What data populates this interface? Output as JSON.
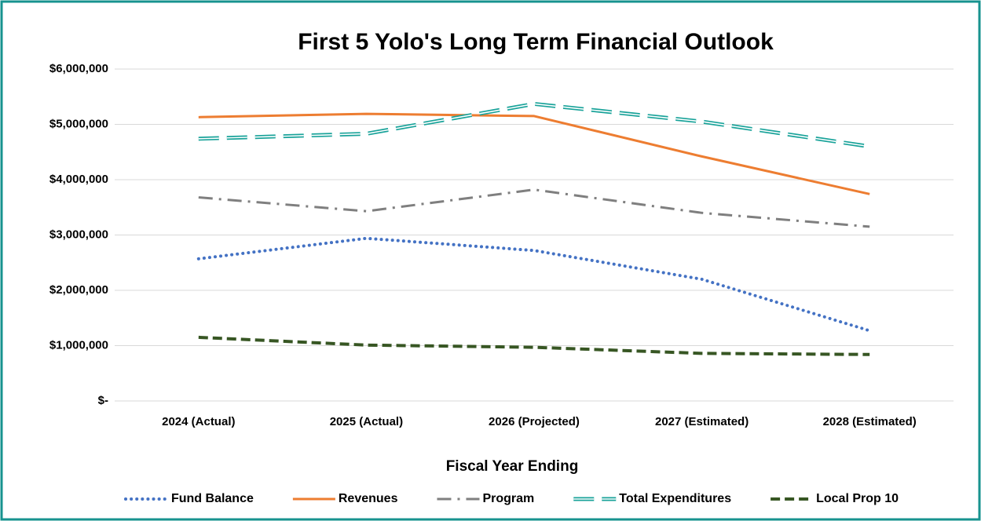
{
  "chart_data": {
    "type": "line",
    "title": "First 5 Yolo's Long Term Financial Outlook",
    "x_label": "Fiscal Year Ending",
    "categories": [
      "2024 (Actual)",
      "2025 (Actual)",
      "2026 (Projected)",
      "2027 (Estimated)",
      "2028 (Estimated)"
    ],
    "series": [
      {
        "name": "Fund Balance",
        "color": "#4472c4",
        "style": "dotted",
        "values": [
          2570000,
          2940000,
          2720000,
          2200000,
          1270000
        ]
      },
      {
        "name": "Revenues",
        "color": "#ed7d31",
        "style": "solid",
        "values": [
          5130000,
          5190000,
          5150000,
          4420000,
          3740000
        ]
      },
      {
        "name": "Program",
        "color": "#7f7f7f",
        "style": "dashdot",
        "values": [
          3680000,
          3430000,
          3820000,
          3400000,
          3150000
        ]
      },
      {
        "name": "Total Expenditures",
        "color": "#1aa39a",
        "style": "double",
        "values": [
          4740000,
          4830000,
          5370000,
          5050000,
          4600000
        ]
      },
      {
        "name": "Local Prop 10",
        "color": "#375623",
        "style": "dashed",
        "values": [
          1150000,
          1010000,
          970000,
          860000,
          840000
        ]
      }
    ],
    "ylim": [
      0,
      6000000
    ],
    "yticks": [
      {
        "value": 0,
        "label": "$-"
      },
      {
        "value": 1000000,
        "label": "$1,000,000"
      },
      {
        "value": 2000000,
        "label": "$2,000,000"
      },
      {
        "value": 3000000,
        "label": "$3,000,000"
      },
      {
        "value": 4000000,
        "label": "$4,000,000"
      },
      {
        "value": 5000000,
        "label": "$5,000,000"
      },
      {
        "value": 6000000,
        "label": "$6,000,000"
      }
    ],
    "grid": true,
    "legend": "bottom"
  }
}
